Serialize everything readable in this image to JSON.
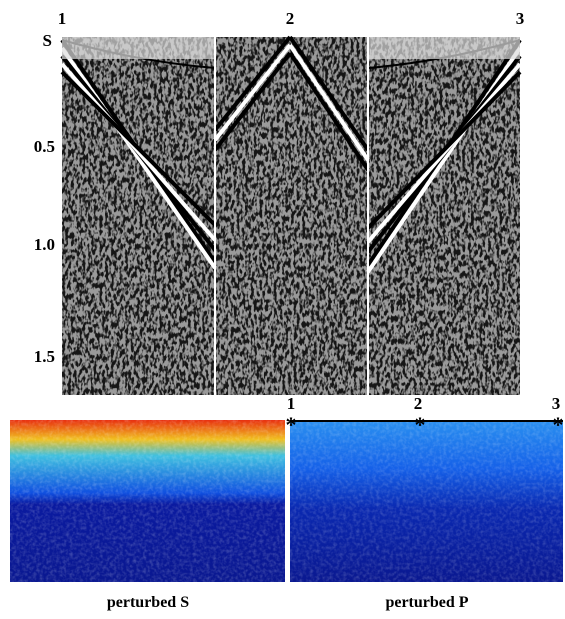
{
  "seismic": {
    "shot_labels": [
      "1",
      "2",
      "3"
    ],
    "time_labels": [
      "S",
      "0.5",
      "1.0",
      "1.5"
    ]
  },
  "models": {
    "receiver_labels": [
      "1",
      "2",
      "3"
    ],
    "captions": [
      "perturbed S",
      "perturbed P"
    ]
  }
}
